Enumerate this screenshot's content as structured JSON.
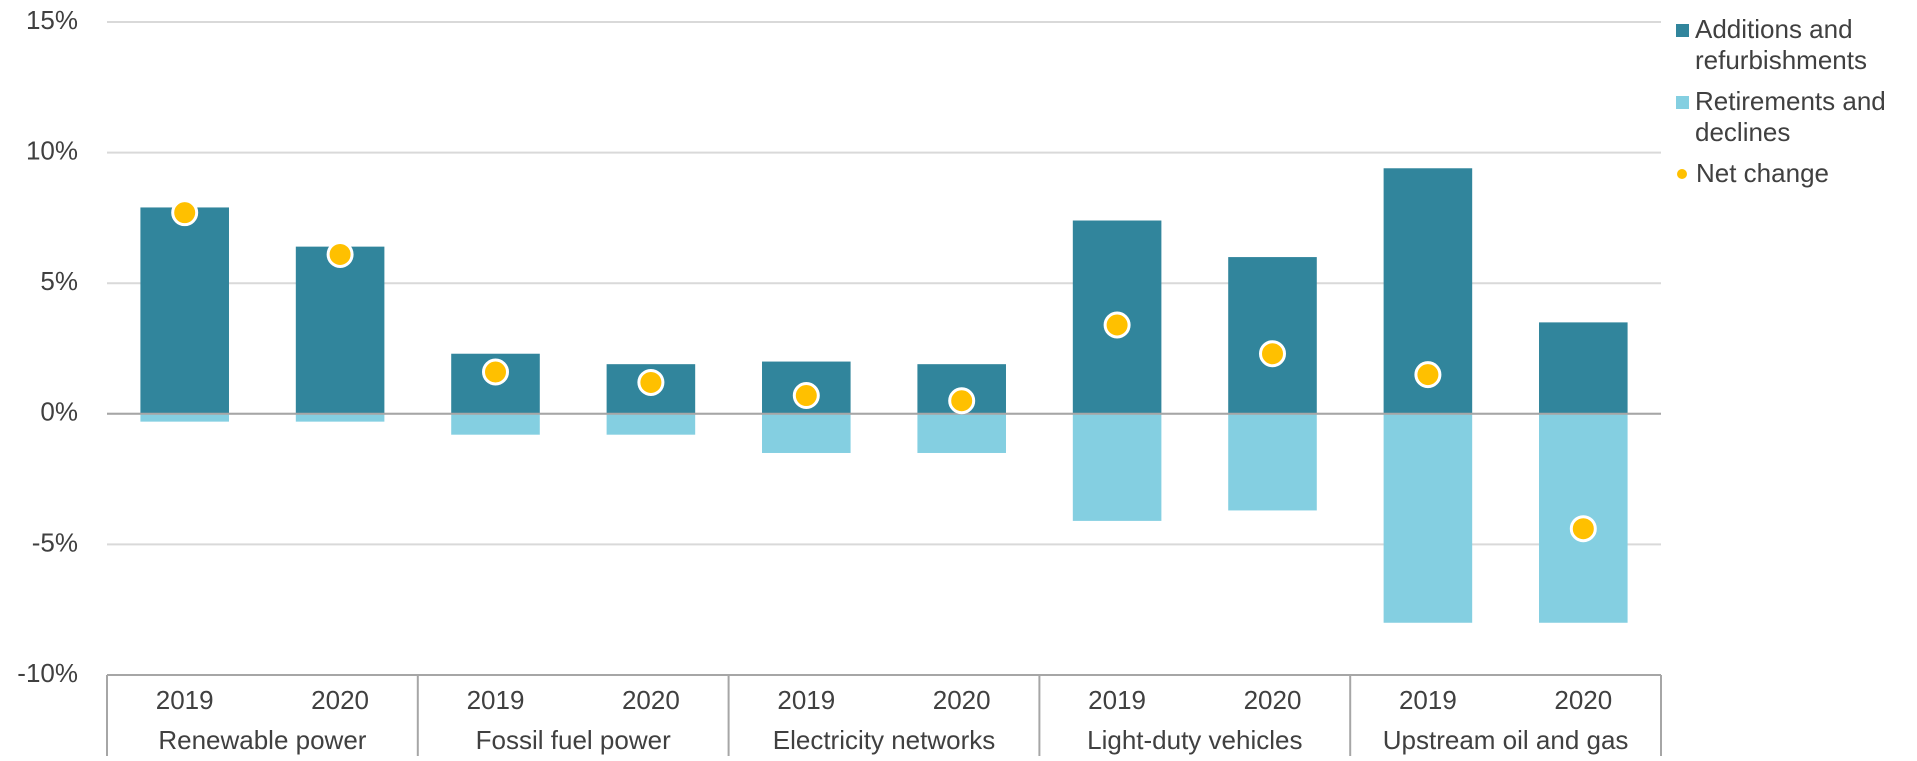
{
  "chart_data": {
    "type": "bar",
    "categories": [
      "2019",
      "2020",
      "2019",
      "2020",
      "2019",
      "2020",
      "2019",
      "2020",
      "2019",
      "2020"
    ],
    "groups": [
      "Renewable power",
      "Fossil fuel power",
      "Electricity networks",
      "Light-duty vehicles",
      "Upstream oil and gas"
    ],
    "series": [
      {
        "name": "Additions and refurbishments",
        "color": "#31859c",
        "kind": "bar",
        "values": [
          7.9,
          6.4,
          2.3,
          1.9,
          2.0,
          1.9,
          7.4,
          6.0,
          9.4,
          3.5
        ]
      },
      {
        "name": "Retirements and declines",
        "color": "#84cfe1",
        "kind": "bar",
        "values": [
          -0.3,
          -0.3,
          -0.8,
          -0.8,
          -1.5,
          -1.5,
          -4.1,
          -3.7,
          -8.0,
          -8.0
        ]
      },
      {
        "name": "Net change",
        "color": "#ffc000",
        "kind": "dot",
        "values": [
          7.7,
          6.1,
          1.6,
          1.2,
          0.7,
          0.5,
          3.4,
          2.3,
          1.5,
          -4.4
        ]
      }
    ],
    "ylim": [
      -10,
      15
    ],
    "yticks": [
      {
        "value": -10,
        "label": "-10%"
      },
      {
        "value": -5,
        "label": "-5%"
      },
      {
        "value": 0,
        "label": "0%"
      },
      {
        "value": 5,
        "label": "5%"
      },
      {
        "value": 10,
        "label": "10%"
      },
      {
        "value": 15,
        "label": "15%"
      }
    ],
    "grid": true,
    "legend": "right"
  }
}
